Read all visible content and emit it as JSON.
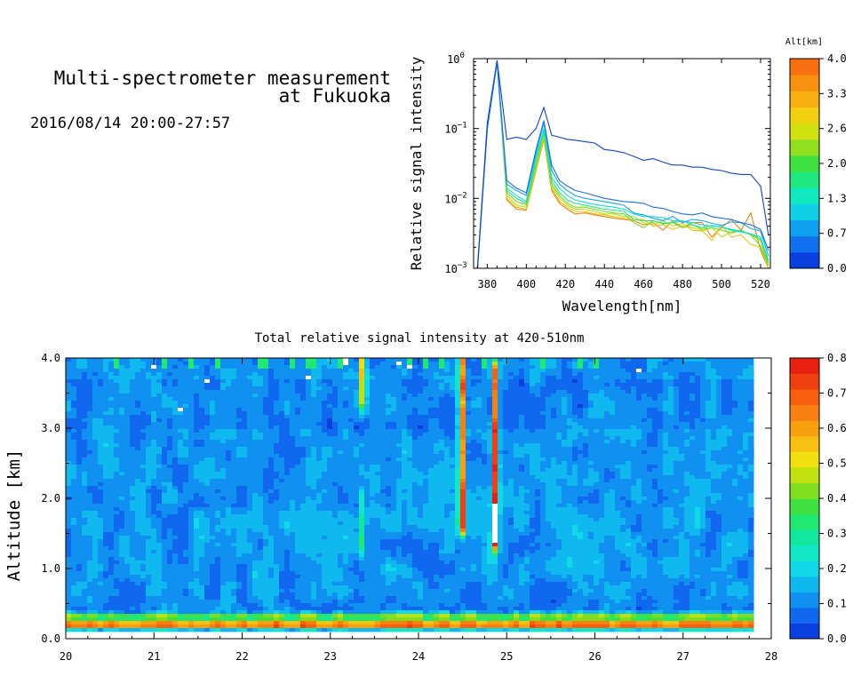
{
  "header": {
    "title_line1": "Multi-spectrometer measurement",
    "title_line2": "at Fukuoka",
    "datetime": "2016/08/14 20:00-27:57"
  },
  "chart_data": [
    {
      "id": "spectrum",
      "type": "line",
      "title": "",
      "xlabel": "Wavelength[nm]",
      "ylabel": "Relative signal intensity",
      "xlim": [
        373,
        525
      ],
      "ylim": [
        0.001,
        1
      ],
      "yscale": "log",
      "x_ticks": [
        380,
        400,
        420,
        440,
        460,
        480,
        500,
        520
      ],
      "y_ticks": [
        {
          "value": 1,
          "base": "10",
          "exp": "0"
        },
        {
          "value": 0.1,
          "base": "10",
          "exp": "−1"
        },
        {
          "value": 0.01,
          "base": "10",
          "exp": "−2"
        },
        {
          "value": 0.001,
          "base": "10",
          "exp": "−3"
        }
      ],
      "x": [
        375,
        380,
        385,
        390,
        395,
        400,
        405,
        409,
        413,
        417,
        421,
        425,
        430,
        435,
        440,
        445,
        450,
        455,
        460,
        465,
        470,
        475,
        480,
        485,
        490,
        495,
        500,
        505,
        510,
        515,
        520,
        524
      ],
      "series": [
        {
          "color": "#1040e0",
          "values": [
            0.001,
            0.12,
            0.95,
            0.07,
            0.075,
            0.07,
            0.1,
            0.2,
            0.08,
            0.075,
            0.07,
            0.068,
            0.065,
            0.062,
            0.05,
            0.048,
            0.045,
            0.04,
            0.035,
            0.037,
            0.033,
            0.03,
            0.03,
            0.028,
            0.028,
            0.026,
            0.025,
            0.023,
            0.022,
            0.022,
            0.015,
            0.003
          ]
        },
        {
          "color": "#1870f0",
          "values": [
            0.001,
            0.1,
            0.9,
            0.018,
            0.014,
            0.012,
            0.05,
            0.13,
            0.03,
            0.018,
            0.015,
            0.013,
            0.012,
            0.011,
            0.01,
            0.0095,
            0.009,
            0.0088,
            0.0085,
            0.0075,
            0.0072,
            0.0065,
            0.006,
            0.0058,
            0.0062,
            0.0055,
            0.0052,
            0.005,
            0.0045,
            0.0042,
            0.0036,
            0.0018
          ]
        },
        {
          "color": "#10a8f0",
          "values": [
            0.001,
            0.1,
            0.9,
            0.016,
            0.013,
            0.011,
            0.045,
            0.12,
            0.025,
            0.016,
            0.013,
            0.011,
            0.01,
            0.0095,
            0.009,
            0.0085,
            0.008,
            0.0062,
            0.0058,
            0.0052,
            0.0048,
            0.0055,
            0.0045,
            0.005,
            0.0048,
            0.0044,
            0.0041,
            0.0046,
            0.0045,
            0.0037,
            0.0034,
            0.0015
          ]
        },
        {
          "color": "#10e0d0",
          "values": [
            0.001,
            0.1,
            0.9,
            0.014,
            0.011,
            0.009,
            0.04,
            0.1,
            0.02,
            0.014,
            0.011,
            0.0095,
            0.0088,
            0.0082,
            0.0078,
            0.0075,
            0.007,
            0.006,
            0.0055,
            0.0055,
            0.0053,
            0.0048,
            0.0047,
            0.0045,
            0.0042,
            0.004,
            0.0039,
            0.0036,
            0.0034,
            0.0031,
            0.0028,
            0.0013
          ]
        },
        {
          "color": "#20e880",
          "values": [
            0.001,
            0.1,
            0.9,
            0.013,
            0.01,
            0.0085,
            0.035,
            0.09,
            0.018,
            0.012,
            0.0095,
            0.0085,
            0.008,
            0.0075,
            0.007,
            0.0068,
            0.0065,
            0.005,
            0.0048,
            0.0048,
            0.0044,
            0.0045,
            0.0048,
            0.0042,
            0.0038,
            0.0041,
            0.0039,
            0.0035,
            0.0033,
            0.0031,
            0.0026,
            0.0012
          ]
        },
        {
          "color": "#70e020",
          "values": [
            0.001,
            0.1,
            0.9,
            0.012,
            0.009,
            0.008,
            0.03,
            0.085,
            0.016,
            0.011,
            0.0085,
            0.0075,
            0.0075,
            0.007,
            0.0065,
            0.0062,
            0.006,
            0.0045,
            0.0038,
            0.0048,
            0.0043,
            0.0045,
            0.0038,
            0.0042,
            0.0036,
            0.0038,
            0.0035,
            0.0032,
            0.0035,
            0.003,
            0.0021,
            0.0011
          ]
        },
        {
          "color": "#b8e010",
          "values": [
            0.001,
            0.1,
            0.9,
            0.011,
            0.008,
            0.0075,
            0.028,
            0.08,
            0.015,
            0.01,
            0.008,
            0.007,
            0.007,
            0.0065,
            0.006,
            0.006,
            0.0055,
            0.0055,
            0.0045,
            0.0042,
            0.0048,
            0.004,
            0.0044,
            0.0035,
            0.0034,
            0.0038,
            0.0028,
            0.0033,
            0.0035,
            0.003,
            0.0025,
            0.0011
          ]
        },
        {
          "color": "#f0c010",
          "values": [
            0.001,
            0.1,
            0.9,
            0.01,
            0.0075,
            0.007,
            0.026,
            0.075,
            0.014,
            0.009,
            0.0075,
            0.0065,
            0.0065,
            0.006,
            0.0058,
            0.0055,
            0.0052,
            0.005,
            0.005,
            0.004,
            0.0042,
            0.0036,
            0.004,
            0.0038,
            0.0035,
            0.0025,
            0.0042,
            0.0028,
            0.003,
            0.0022,
            0.002,
            0.001
          ]
        },
        {
          "color": "#f08010",
          "values": [
            0.001,
            0.1,
            0.9,
            0.0095,
            0.007,
            0.0068,
            0.025,
            0.07,
            0.013,
            0.0085,
            0.007,
            0.006,
            0.0062,
            0.0058,
            0.0055,
            0.0052,
            0.005,
            0.0048,
            0.0042,
            0.0045,
            0.0035,
            0.0048,
            0.0038,
            0.0045,
            0.0045,
            0.0028,
            0.0038,
            0.005,
            0.0035,
            0.0062,
            0.0018,
            0.001
          ]
        }
      ]
    },
    {
      "id": "altitude-colorbar",
      "type": "heatmap",
      "title": "Alt[km]",
      "range": [
        0.0,
        4.0
      ],
      "tick_labels": [
        "4.0",
        "3.3",
        "2.6",
        "2.0",
        "1.3",
        "0.7",
        "0.0"
      ],
      "colors": [
        "#0a40e0",
        "#1070ee",
        "#10a0f0",
        "#10d0e8",
        "#10e8c0",
        "#20e880",
        "#40e040",
        "#90e020",
        "#d0e010",
        "#f0d010",
        "#f8b010",
        "#f89010",
        "#f87010"
      ]
    },
    {
      "id": "time-altitude",
      "type": "heatmap",
      "title": "Total relative signal intensity at 420-510nm",
      "xlabel": "",
      "ylabel": "Altitude [km]",
      "xlim": [
        20,
        28
      ],
      "ylim": [
        0.0,
        4.0
      ],
      "data_end_x": 27.8,
      "x_tick_labels": [
        "20",
        "21",
        "22",
        "23",
        "24",
        "25",
        "26",
        "27",
        "28"
      ],
      "y_tick_labels": [
        "0.0",
        "1.0",
        "2.0",
        "3.0",
        "4.0"
      ],
      "background_level": 0.12,
      "features": [
        {
          "x": 24.49,
          "y0": 1.6,
          "y1": 4.0,
          "peak": 0.8
        },
        {
          "x": 24.87,
          "y0": 1.4,
          "y1": 3.8,
          "peak": 0.8
        },
        {
          "x": 23.37,
          "y0": 3.4,
          "y1": 4.0,
          "peak": 0.6
        },
        {
          "x": 23.35,
          "y0": 1.3,
          "y1": 2.0,
          "peak": 0.3
        },
        {
          "x": 20.2,
          "y0": 0.1,
          "y1": 0.3,
          "peak": 0.7
        }
      ],
      "surface_layer": {
        "y0": 0.15,
        "y1": 0.4,
        "peak": 0.8
      }
    },
    {
      "id": "intensity-colorbar",
      "type": "heatmap",
      "title": "",
      "range": [
        0.0,
        0.8
      ],
      "tick_labels": [
        "0.8",
        "0.7",
        "0.6",
        "0.5",
        "0.4",
        "0.3",
        "0.2",
        "0.1",
        "0.0"
      ],
      "colors": [
        "#0a40e0",
        "#1068ee",
        "#1090f0",
        "#10b8f0",
        "#10d8e8",
        "#10e8c8",
        "#10e8a0",
        "#20e870",
        "#40e040",
        "#80e020",
        "#c0e010",
        "#f0e010",
        "#f8c010",
        "#f8a010",
        "#f88010",
        "#f86010",
        "#f04010",
        "#e82010"
      ]
    }
  ]
}
